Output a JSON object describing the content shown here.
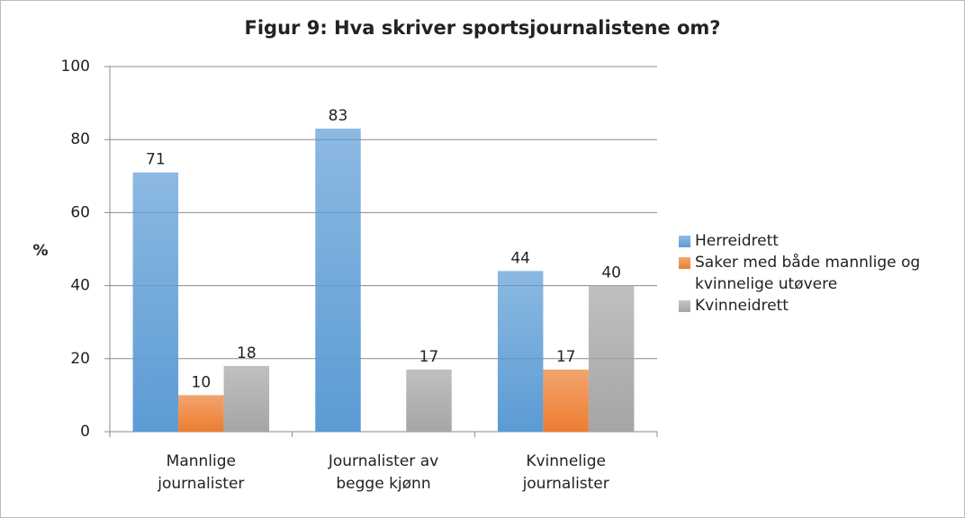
{
  "chart_data": {
    "type": "bar",
    "title": "Figur 9: Hva skriver sportsjournalistene om?",
    "ylabel": "%",
    "categories": [
      [
        "Mannlige",
        "journalister"
      ],
      [
        "Journalister av",
        "begge kjønn"
      ],
      [
        "Kvinnelige",
        "journalister"
      ]
    ],
    "series": [
      {
        "name": "Herreidrett",
        "color": "#5b9bd5",
        "values": [
          71,
          83,
          44
        ]
      },
      {
        "name": "Saker med både mannlige og kvinnelige utøvere",
        "color": "#ed7d31",
        "values": [
          10,
          null,
          17
        ]
      },
      {
        "name": "Kvinneidrett",
        "color": "#a5a5a5",
        "values": [
          18,
          17,
          40
        ]
      }
    ],
    "ylim": [
      0,
      100
    ],
    "yticks": [
      0,
      20,
      40,
      60,
      80,
      100
    ],
    "grid": true,
    "legend": "right"
  }
}
